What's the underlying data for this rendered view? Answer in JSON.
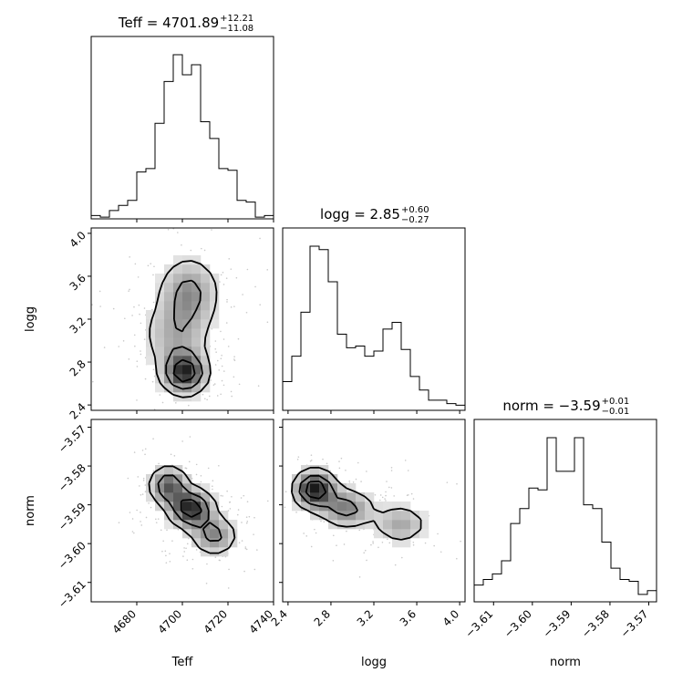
{
  "parameters": [
    "Teff",
    "logg",
    "norm"
  ],
  "titles": [
    {
      "param": "Teff",
      "prefix": "Teff = ",
      "value": "4701.89",
      "upper": "+12.21",
      "lower": "−11.08"
    },
    {
      "param": "logg",
      "prefix": "logg = ",
      "value": "2.85",
      "upper": "+0.60",
      "lower": "−0.27"
    },
    {
      "param": "norm",
      "prefix": "norm = ",
      "value": "−3.59",
      "upper": "+0.01",
      "lower": "−0.01"
    }
  ],
  "axis_labels": {
    "Teff": "Teff",
    "logg": "logg",
    "norm": "norm"
  },
  "colors": {
    "lines": "#000000",
    "density_dark": "#000000",
    "density_light": "#f2f2f2",
    "background": "#ffffff"
  },
  "chart_data": [
    {
      "type": "step-histogram",
      "panel": "Teff marginal",
      "param": "Teff",
      "xlim": [
        4660,
        4740
      ],
      "bin_edges": [
        4660,
        4664,
        4668,
        4672,
        4676,
        4680,
        4684,
        4688,
        4692,
        4696,
        4700,
        4704,
        4708,
        4712,
        4716,
        4720,
        4724,
        4728,
        4732,
        4736,
        4740
      ],
      "counts": [
        0.02,
        0.01,
        0.05,
        0.08,
        0.11,
        0.28,
        0.3,
        0.57,
        0.82,
        0.98,
        0.86,
        0.92,
        0.58,
        0.48,
        0.3,
        0.29,
        0.11,
        0.1,
        0.01,
        0.02
      ]
    },
    {
      "type": "step-histogram",
      "panel": "logg marginal",
      "param": "logg",
      "xlim": [
        2.35,
        4.05
      ],
      "bin_edges": [
        2.35,
        2.435,
        2.52,
        2.605,
        2.69,
        2.775,
        2.86,
        2.945,
        3.03,
        3.115,
        3.2,
        3.285,
        3.37,
        3.455,
        3.54,
        3.625,
        3.71,
        3.795,
        3.88,
        3.965,
        4.05
      ],
      "counts": [
        0.17,
        0.32,
        0.58,
        0.97,
        0.95,
        0.76,
        0.45,
        0.37,
        0.38,
        0.32,
        0.35,
        0.48,
        0.52,
        0.36,
        0.2,
        0.12,
        0.06,
        0.06,
        0.04,
        0.03
      ]
    },
    {
      "type": "step-histogram",
      "panel": "norm marginal",
      "param": "norm",
      "xlim": [
        -3.615,
        -3.568
      ],
      "bin_edges": [
        -3.615,
        -3.61265,
        -3.6103,
        -3.60795,
        -3.6056,
        -3.60325,
        -3.6009,
        -3.59855,
        -3.5962,
        -3.59385,
        -3.5915,
        -3.58915,
        -3.5868,
        -3.58445,
        -3.5821,
        -3.57975,
        -3.5774,
        -3.57505,
        -3.5727,
        -3.57035,
        -3.568
      ],
      "counts": [
        0.09,
        0.12,
        0.15,
        0.22,
        0.42,
        0.5,
        0.61,
        0.6,
        0.88,
        0.7,
        0.7,
        0.88,
        0.52,
        0.5,
        0.32,
        0.18,
        0.12,
        0.11,
        0.04,
        0.06
      ]
    },
    {
      "type": "contour-density",
      "panel": "logg vs Teff",
      "x": "Teff",
      "y": "logg",
      "xlim": [
        4660,
        4740
      ],
      "ylim": [
        2.35,
        4.05
      ],
      "cores": [
        {
          "x": 4701,
          "y": 2.7,
          "sx": 6,
          "sy": 0.12,
          "w": 1.0
        },
        {
          "x": 4703,
          "y": 3.45,
          "sx": 8,
          "sy": 0.2,
          "w": 0.55
        },
        {
          "x": 4697,
          "y": 3.05,
          "sx": 9,
          "sy": 0.2,
          "w": 0.4
        }
      ],
      "contour_levels": [
        0.18,
        0.45,
        0.75
      ]
    },
    {
      "type": "contour-density",
      "panel": "norm vs Teff",
      "x": "Teff",
      "y": "norm",
      "xlim": [
        4660,
        4740
      ],
      "ylim": [
        -3.615,
        -3.568
      ],
      "cores": [
        {
          "x": 4694,
          "y": -3.585,
          "sx": 5,
          "sy": 0.003,
          "w": 0.8
        },
        {
          "x": 4704,
          "y": -3.591,
          "sx": 6,
          "sy": 0.003,
          "w": 1.0
        },
        {
          "x": 4714,
          "y": -3.598,
          "sx": 6,
          "sy": 0.003,
          "w": 0.6
        }
      ],
      "contour_levels": [
        0.2,
        0.5,
        0.78
      ]
    },
    {
      "type": "contour-density",
      "panel": "norm vs logg",
      "x": "logg",
      "y": "norm",
      "xlim": [
        2.35,
        4.05
      ],
      "ylim": [
        -3.615,
        -3.568
      ],
      "cores": [
        {
          "x": 2.65,
          "y": -3.586,
          "sx": 0.12,
          "sy": 0.003,
          "w": 1.0
        },
        {
          "x": 2.95,
          "y": -3.591,
          "sx": 0.15,
          "sy": 0.003,
          "w": 0.6
        },
        {
          "x": 3.45,
          "y": -3.595,
          "sx": 0.15,
          "sy": 0.003,
          "w": 0.45
        }
      ],
      "contour_levels": [
        0.2,
        0.5,
        0.78
      ]
    }
  ],
  "ticks": {
    "Teff": [
      {
        "v": 4680,
        "label": "4680"
      },
      {
        "v": 4700,
        "label": "4700"
      },
      {
        "v": 4720,
        "label": "4720"
      },
      {
        "v": 4740,
        "label": "4740"
      }
    ],
    "logg": [
      {
        "v": 2.4,
        "label": "2.4"
      },
      {
        "v": 2.8,
        "label": "2.8"
      },
      {
        "v": 3.2,
        "label": "3.2"
      },
      {
        "v": 3.6,
        "label": "3.6"
      },
      {
        "v": 4.0,
        "label": "4.0"
      }
    ],
    "norm": [
      {
        "v": -3.61,
        "label": "−3.61"
      },
      {
        "v": -3.6,
        "label": "−3.60"
      },
      {
        "v": -3.59,
        "label": "−3.59"
      },
      {
        "v": -3.58,
        "label": "−3.58"
      },
      {
        "v": -3.57,
        "label": "−3.57"
      }
    ]
  }
}
